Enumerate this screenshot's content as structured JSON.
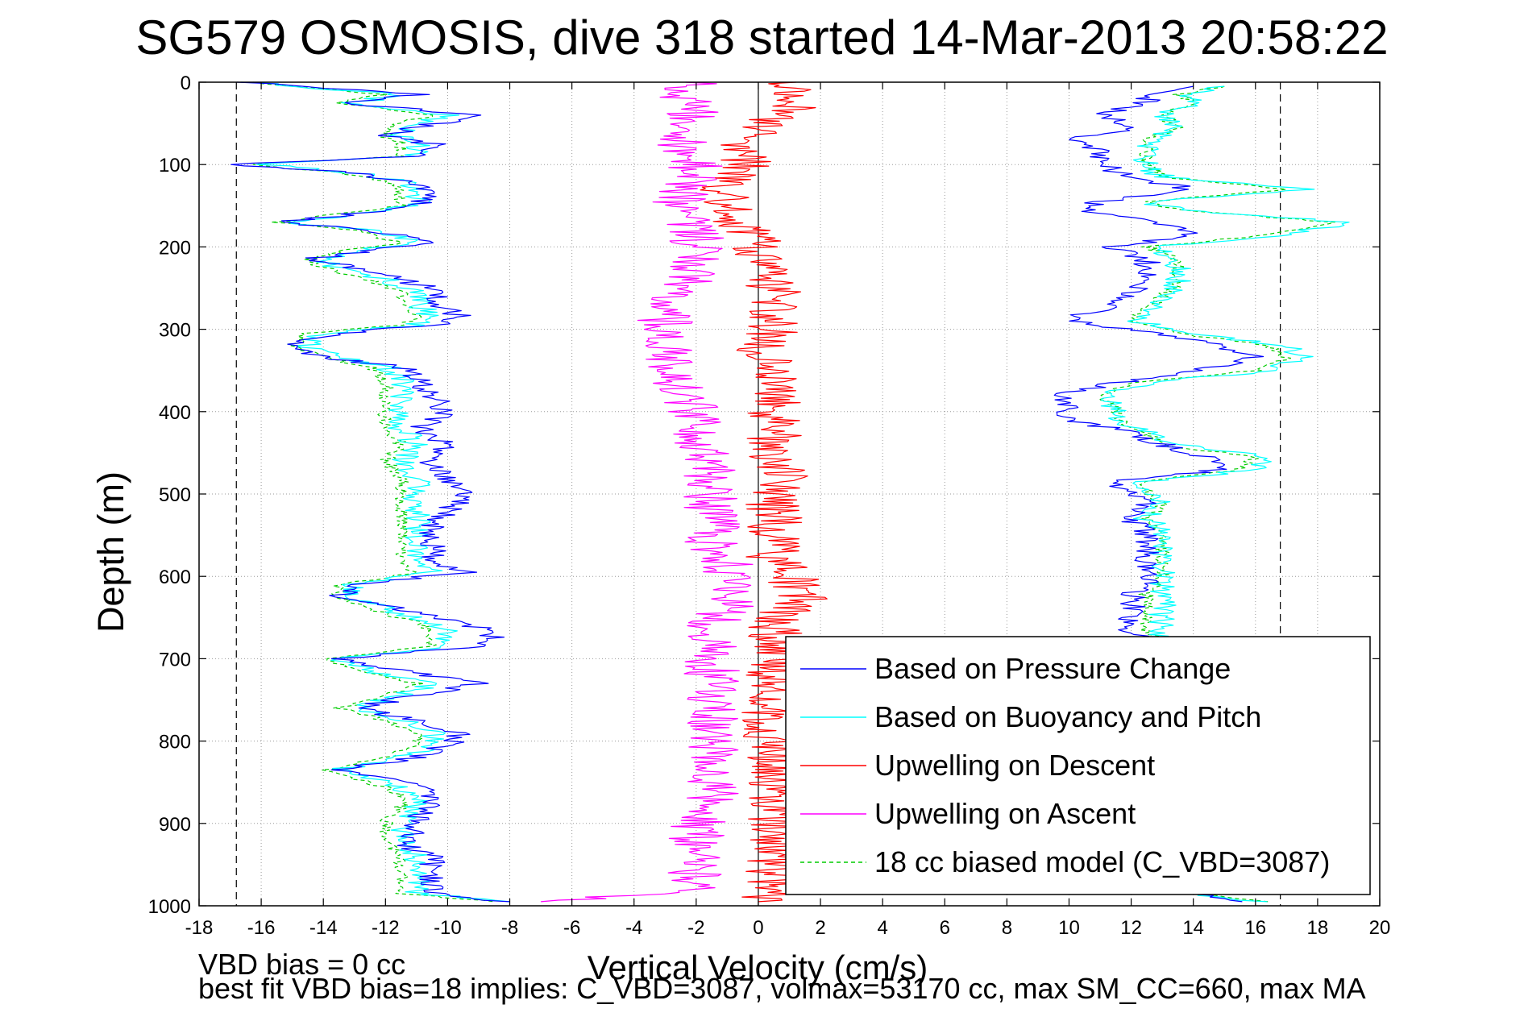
{
  "chart_data": {
    "type": "line",
    "title": "SG579 OSMOSIS, dive 318 started 14-Mar-2013 20:58:22",
    "xlabel": "Vertical Velocity (cm/s)",
    "ylabel": "Depth (m)",
    "xlim": [
      -18,
      20
    ],
    "ylim": [
      0,
      1000
    ],
    "y_reversed": true,
    "grid": true,
    "grid_style": "dotted",
    "xticks": [
      -18,
      -16,
      -14,
      -12,
      -10,
      -8,
      -6,
      -4,
      -2,
      0,
      2,
      4,
      6,
      8,
      10,
      12,
      14,
      16,
      18,
      20
    ],
    "yticks": [
      0,
      100,
      200,
      300,
      400,
      500,
      600,
      700,
      800,
      900,
      1000
    ],
    "zero_line_x": 0,
    "reference_lines_x": [
      -16.8,
      16.8
    ],
    "legend_position": "bottom-right",
    "annotations": [
      "VBD bias = 0 cc",
      "best fit VBD bias=18 implies: C_VBD=3087, volmax=53170 cc, max SM_CC=660, max MA"
    ],
    "series": [
      {
        "name": "Based on Pressure Change",
        "color": "#0000ff",
        "style": "solid",
        "descent": {
          "depth": [
            0,
            15,
            25,
            40,
            55,
            65,
            75,
            90,
            100,
            110,
            120,
            135,
            150,
            160,
            170,
            180,
            195,
            205,
            215,
            225,
            240,
            255,
            270,
            285,
            295,
            305,
            320,
            335,
            345,
            360,
            380,
            400,
            420,
            440,
            460,
            480,
            500,
            520,
            540,
            560,
            580,
            595,
            610,
            625,
            640,
            655,
            670,
            685,
            700,
            715,
            730,
            745,
            760,
            775,
            790,
            805,
            820,
            835,
            850,
            865,
            880,
            895,
            910,
            925,
            940,
            955,
            970,
            985,
            995
          ],
          "velocity": [
            -16.5,
            -11,
            -13.5,
            -9,
            -11,
            -12,
            -10.5,
            -11,
            -17,
            -13,
            -11.5,
            -10.5,
            -11,
            -13,
            -15.5,
            -12.5,
            -10.5,
            -12.5,
            -14.5,
            -13,
            -11.5,
            -10,
            -10.5,
            -9.5,
            -10.5,
            -13.5,
            -15,
            -14,
            -11.5,
            -11,
            -10.5,
            -10,
            -11,
            -10,
            -10.5,
            -10,
            -9.5,
            -10,
            -10.5,
            -10.5,
            -10.5,
            -9.5,
            -13,
            -13.5,
            -11.5,
            -9.5,
            -8.5,
            -9,
            -13.5,
            -11.5,
            -9,
            -11,
            -13,
            -11,
            -9.5,
            -10,
            -11,
            -13.5,
            -11.5,
            -10.5,
            -10.5,
            -11,
            -11,
            -11.5,
            -10.5,
            -10.5,
            -10.5,
            -10.5,
            -8
          ]
        },
        "ascent": {
          "depth": [
            995,
            980,
            965,
            950,
            935,
            920,
            905,
            890,
            875,
            860,
            845,
            830,
            815,
            800,
            785,
            770,
            755,
            740,
            725,
            710,
            695,
            680,
            665,
            650,
            635,
            620,
            605,
            590,
            575,
            560,
            545,
            530,
            515,
            500,
            485,
            470,
            455,
            440,
            425,
            410,
            395,
            380,
            365,
            350,
            335,
            320,
            305,
            290,
            275,
            260,
            245,
            230,
            215,
            200,
            185,
            170,
            155,
            145,
            130,
            115,
            100,
            85,
            70,
            55,
            40,
            25,
            15,
            5
          ],
          "velocity": [
            16,
            12.5,
            12.5,
            12.5,
            12,
            12,
            12,
            12.5,
            12.5,
            12.5,
            12.5,
            12.5,
            12.5,
            12.5,
            12.5,
            12.5,
            12.5,
            12.5,
            12.5,
            12.5,
            12.5,
            12.5,
            12,
            12,
            12,
            12,
            12.5,
            12.5,
            12.5,
            12.5,
            12.5,
            12,
            12.5,
            12,
            11.5,
            15,
            14.5,
            13,
            12,
            10,
            10,
            9.5,
            11.5,
            14,
            16,
            15,
            13,
            10,
            11,
            12,
            12.5,
            12.5,
            12.5,
            11.5,
            14,
            13,
            10.5,
            11,
            14,
            12,
            11,
            11,
            10,
            12,
            11,
            12.5,
            12.5,
            14
          ]
        }
      },
      {
        "name": "Based on Buoyancy and Pitch",
        "color": "#00ffff",
        "style": "solid",
        "descent": {
          "depth": [
            0,
            15,
            25,
            40,
            55,
            65,
            75,
            90,
            100,
            110,
            120,
            135,
            150,
            160,
            170,
            180,
            195,
            205,
            215,
            225,
            240,
            255,
            270,
            285,
            295,
            305,
            320,
            335,
            345,
            360,
            380,
            400,
            420,
            440,
            460,
            480,
            500,
            520,
            540,
            560,
            580,
            595,
            610,
            625,
            640,
            655,
            670,
            685,
            700,
            715,
            730,
            745,
            760,
            775,
            790,
            805,
            820,
            835,
            850,
            865,
            880,
            895,
            910,
            925,
            940,
            955,
            970,
            985,
            995
          ],
          "velocity": [
            -16.5,
            -11.5,
            -13,
            -10,
            -11.5,
            -11.5,
            -11,
            -11,
            -16,
            -13,
            -11.5,
            -11,
            -11,
            -13,
            -15,
            -12.5,
            -11,
            -13,
            -14,
            -13.5,
            -12,
            -11,
            -11,
            -10.5,
            -11,
            -14,
            -14.5,
            -13.5,
            -12,
            -11.5,
            -11.5,
            -11.5,
            -11.5,
            -11,
            -11.5,
            -11,
            -11,
            -11,
            -11,
            -11,
            -11,
            -10.5,
            -13,
            -13,
            -12,
            -10.5,
            -10,
            -10,
            -13.5,
            -12.5,
            -10.5,
            -11.5,
            -13,
            -11.5,
            -10.5,
            -10.5,
            -11.5,
            -13.5,
            -12,
            -11,
            -11,
            -11.5,
            -11.5,
            -11.5,
            -11,
            -11,
            -11,
            -11,
            -8
          ]
        },
        "ascent": {
          "depth": [
            995,
            980,
            965,
            950,
            935,
            920,
            905,
            890,
            875,
            860,
            845,
            830,
            815,
            800,
            785,
            770,
            755,
            740,
            725,
            710,
            695,
            680,
            665,
            650,
            635,
            620,
            605,
            590,
            575,
            560,
            545,
            530,
            515,
            500,
            485,
            470,
            455,
            440,
            425,
            410,
            395,
            380,
            365,
            350,
            335,
            320,
            305,
            290,
            275,
            260,
            245,
            230,
            215,
            200,
            185,
            170,
            155,
            145,
            130,
            115,
            100,
            85,
            70,
            55,
            40,
            25,
            15,
            5
          ],
          "velocity": [
            16,
            13,
            13,
            13,
            12.5,
            12.5,
            12.5,
            13,
            13,
            13,
            13,
            13,
            13,
            13,
            13,
            13,
            13,
            13,
            13,
            13,
            13,
            13,
            13,
            13,
            13,
            13,
            13,
            13,
            13,
            13,
            13,
            12.5,
            13,
            12.5,
            12.5,
            16,
            16.5,
            13.5,
            12.5,
            11.5,
            11.5,
            11,
            12.5,
            16.5,
            17.5,
            17,
            14,
            12,
            12.5,
            13,
            13.5,
            13.5,
            13.5,
            12.5,
            17,
            19,
            13.5,
            12.5,
            17.5,
            13,
            12.5,
            12.5,
            12.5,
            13.5,
            13,
            14,
            14,
            15
          ]
        }
      },
      {
        "name": "Upwelling on Descent",
        "color": "#ff0000",
        "style": "solid",
        "depth": [
          0,
          20,
          40,
          60,
          80,
          100,
          120,
          140,
          160,
          180,
          200,
          220,
          240,
          260,
          280,
          300,
          320,
          340,
          360,
          380,
          400,
          420,
          440,
          460,
          480,
          500,
          520,
          540,
          560,
          580,
          600,
          620,
          640,
          660,
          680,
          700,
          720,
          740,
          760,
          780,
          800,
          820,
          840,
          860,
          880,
          900,
          920,
          940,
          960,
          980,
          995
        ],
        "velocity": [
          1,
          1.5,
          0.5,
          0,
          -0.5,
          -0.5,
          -1,
          -1,
          -1,
          -0.5,
          0,
          0,
          0.5,
          0.5,
          0.5,
          0.5,
          0,
          0.5,
          0.5,
          0.5,
          0.5,
          0.5,
          0.5,
          0.5,
          1,
          0.5,
          0.5,
          0.5,
          0.5,
          0.5,
          1,
          1.5,
          1,
          0.5,
          0.5,
          0.5,
          0.5,
          0.5,
          0.5,
          0,
          0.5,
          0.5,
          0.5,
          0.5,
          0.5,
          0.5,
          0.5,
          0.5,
          0.5,
          0.5,
          0
        ]
      },
      {
        "name": "Upwelling on Ascent",
        "color": "#ff00ff",
        "style": "solid",
        "depth": [
          0,
          20,
          40,
          60,
          80,
          100,
          120,
          140,
          160,
          180,
          200,
          220,
          240,
          260,
          280,
          300,
          320,
          340,
          360,
          380,
          400,
          420,
          440,
          460,
          480,
          500,
          520,
          540,
          560,
          580,
          600,
          620,
          640,
          660,
          680,
          700,
          720,
          740,
          760,
          780,
          800,
          820,
          840,
          860,
          880,
          900,
          920,
          940,
          960,
          980,
          995
        ],
        "velocity": [
          -2,
          -2.5,
          -2,
          -2.5,
          -2.5,
          -2,
          -2,
          -2.5,
          -2.5,
          -2,
          -2,
          -2,
          -2,
          -2.5,
          -3,
          -3,
          -3,
          -3,
          -2.5,
          -2.5,
          -2,
          -2,
          -2,
          -1.5,
          -1.5,
          -1.5,
          -1.5,
          -1.5,
          -1.5,
          -1,
          -1,
          -1,
          -1,
          -1.5,
          -1.5,
          -1.5,
          -1.5,
          -1.5,
          -1.5,
          -1.5,
          -1.5,
          -1.5,
          -1.5,
          -1.5,
          -1.5,
          -2,
          -2,
          -2,
          -2,
          -2,
          -7
        ]
      },
      {
        "name": "18 cc biased model (C_VBD=3087)",
        "color": "#00cc00",
        "style": "dashed",
        "descent": {
          "depth": [
            0,
            15,
            25,
            40,
            55,
            65,
            75,
            90,
            100,
            110,
            120,
            135,
            150,
            160,
            170,
            180,
            195,
            205,
            215,
            225,
            240,
            255,
            270,
            285,
            295,
            305,
            320,
            335,
            345,
            360,
            380,
            400,
            420,
            440,
            460,
            480,
            500,
            520,
            540,
            560,
            580,
            595,
            610,
            625,
            640,
            655,
            670,
            685,
            700,
            715,
            730,
            745,
            760,
            775,
            790,
            805,
            820,
            835,
            850,
            865,
            880,
            895,
            910,
            925,
            940,
            955,
            970,
            985,
            995
          ],
          "velocity": [
            -16.5,
            -12,
            -13.5,
            -10.5,
            -12,
            -12,
            -11.5,
            -11.5,
            -16.5,
            -13.5,
            -12,
            -11.5,
            -11.5,
            -13.5,
            -15.5,
            -13,
            -11.5,
            -13.5,
            -14.5,
            -14,
            -12.5,
            -11.5,
            -11.5,
            -11,
            -11.5,
            -14.5,
            -15,
            -14,
            -12.5,
            -12,
            -12,
            -12,
            -12,
            -11.5,
            -12,
            -11.5,
            -11.5,
            -11.5,
            -11.5,
            -11.5,
            -11.5,
            -11,
            -13.5,
            -13.5,
            -12.5,
            -11,
            -10.5,
            -10.5,
            -14,
            -13,
            -11,
            -12,
            -13.5,
            -12,
            -11,
            -11,
            -12,
            -14,
            -12.5,
            -11.5,
            -11.5,
            -12,
            -12,
            -12,
            -11.5,
            -11.5,
            -11.5,
            -11.5,
            -8.5
          ]
        },
        "ascent": {
          "depth": [
            995,
            980,
            965,
            950,
            935,
            920,
            905,
            890,
            875,
            860,
            845,
            830,
            815,
            800,
            785,
            770,
            755,
            740,
            725,
            710,
            695,
            680,
            665,
            650,
            635,
            620,
            605,
            590,
            575,
            560,
            545,
            530,
            515,
            500,
            485,
            470,
            455,
            440,
            425,
            410,
            395,
            380,
            365,
            350,
            335,
            320,
            305,
            290,
            275,
            260,
            245,
            230,
            215,
            200,
            185,
            170,
            155,
            145,
            130,
            115,
            100,
            85,
            70,
            55,
            40,
            25,
            15,
            5
          ],
          "velocity": [
            16.5,
            13,
            13,
            13,
            12.5,
            12.5,
            12.5,
            13,
            13,
            13,
            13,
            13,
            13,
            13,
            13,
            13,
            13,
            13,
            13,
            13,
            13,
            13,
            12.5,
            12.5,
            12.5,
            12.5,
            13,
            13,
            13,
            13,
            13,
            12.5,
            13,
            12.5,
            12.5,
            15.5,
            16,
            13,
            12.5,
            11.5,
            11.5,
            11,
            12,
            16,
            17,
            16.5,
            13.5,
            12,
            12.5,
            13,
            13.5,
            13.5,
            13.5,
            12.5,
            16.5,
            18.5,
            13.5,
            12.5,
            17,
            13,
            12.5,
            12.5,
            12.5,
            13.5,
            13,
            14,
            13.5,
            15
          ]
        }
      }
    ]
  }
}
